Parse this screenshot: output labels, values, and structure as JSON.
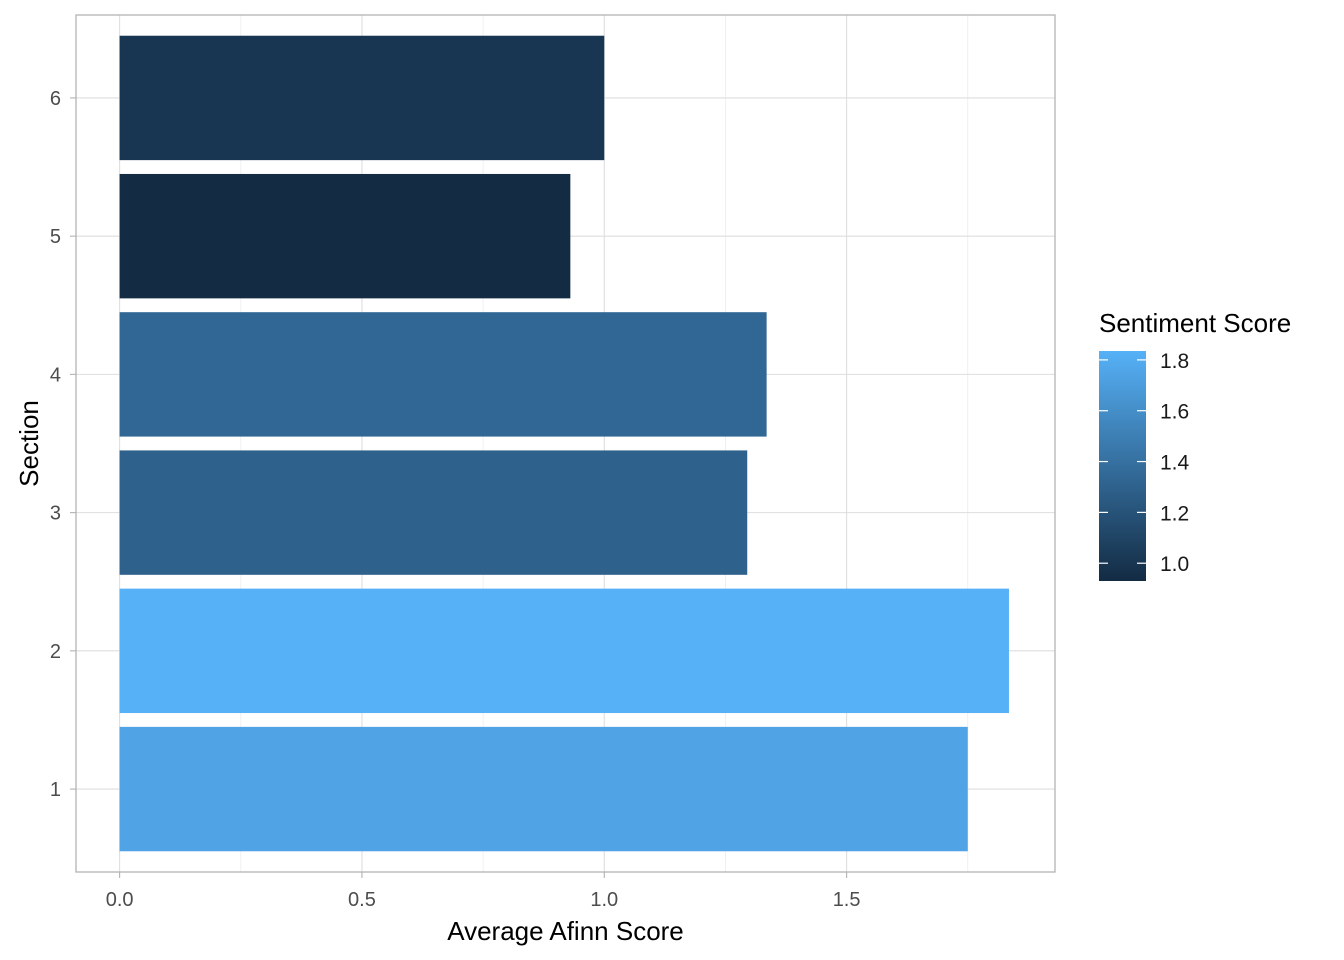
{
  "chart_data": {
    "type": "bar",
    "orientation": "horizontal",
    "xlabel": "Average Afinn Score",
    "ylabel": "Section",
    "categories": [
      "1",
      "2",
      "3",
      "4",
      "5",
      "6"
    ],
    "values": [
      1.75,
      1.835,
      1.295,
      1.335,
      0.93,
      1.0
    ],
    "xlim": [
      -0.09,
      1.93
    ],
    "x_ticks": [
      0.0,
      0.5,
      1.0,
      1.5
    ],
    "x_tick_labels": [
      "0.0",
      "0.5",
      "1.0",
      "1.5"
    ],
    "grid": true,
    "legend": {
      "title": "Sentiment Score",
      "position": "right",
      "type": "colorbar",
      "min": 0.93,
      "max": 1.835,
      "ticks": [
        1.0,
        1.2,
        1.4,
        1.6,
        1.8
      ],
      "tick_labels": [
        "1.0",
        "1.2",
        "1.4",
        "1.6",
        "1.8"
      ],
      "low_color": "#132B43",
      "high_color": "#56B1F7"
    }
  }
}
